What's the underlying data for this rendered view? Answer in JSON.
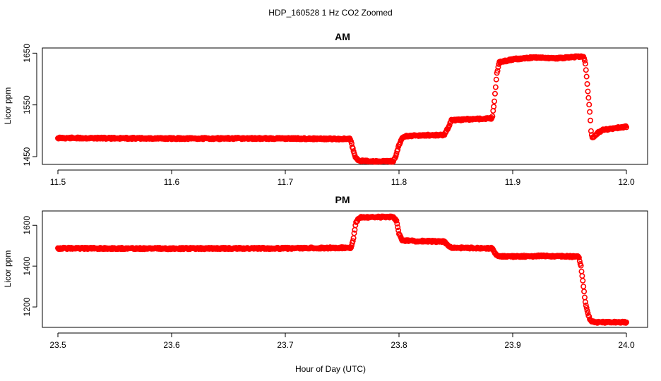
{
  "figure": {
    "title": "HDP_160528  1 Hz CO2 Zoomed",
    "xlabel": "Hour of Day (UTC)"
  },
  "chart_data": [
    {
      "type": "scatter",
      "title": "AM",
      "xlabel": "Hour of Day (UTC)",
      "ylabel": "Licor ppm",
      "xlim": [
        11.5,
        12.0
      ],
      "ylim": [
        1435,
        1660
      ],
      "xticks": [
        11.5,
        11.6,
        11.7,
        11.8,
        11.9,
        12.0
      ],
      "xtick_labels": [
        "11.5",
        "11.6",
        "11.7",
        "11.8",
        "11.9",
        "12.0"
      ],
      "yticks": [
        1450,
        1550,
        1650
      ],
      "ytick_labels": [
        "1450",
        "1550",
        "1650"
      ],
      "grid": false,
      "color": "#ff0000",
      "marker": "open-circle",
      "series": [
        {
          "x": [
            11.5,
            11.6,
            11.7,
            11.757,
            11.758,
            11.76,
            11.762,
            11.765,
            11.78,
            11.795,
            11.797,
            11.8,
            11.803,
            11.806,
            11.82,
            11.84,
            11.843,
            11.846,
            11.86,
            11.882,
            11.884,
            11.886,
            11.888,
            11.9,
            11.92,
            11.94,
            11.962,
            11.964,
            11.966,
            11.968,
            11.969,
            11.97,
            11.975,
            11.98,
            11.99,
            12.0
          ],
          "y": [
            1486,
            1485,
            1485,
            1484,
            1478,
            1460,
            1447,
            1442,
            1441,
            1441,
            1450,
            1473,
            1486,
            1490,
            1491,
            1492,
            1505,
            1520,
            1522,
            1524,
            1560,
            1610,
            1632,
            1638,
            1642,
            1640,
            1644,
            1630,
            1580,
            1530,
            1496,
            1486,
            1496,
            1502,
            1505,
            1508
          ]
        }
      ]
    },
    {
      "type": "scatter",
      "title": "PM",
      "xlabel": "Hour of Day (UTC)",
      "ylabel": "Licor ppm",
      "xlim": [
        23.5,
        24.0
      ],
      "ylim": [
        1100,
        1670
      ],
      "xticks": [
        23.5,
        23.6,
        23.7,
        23.8,
        23.9,
        24.0
      ],
      "xtick_labels": [
        "23.5",
        "23.6",
        "23.7",
        "23.8",
        "23.9",
        "24.0"
      ],
      "yticks": [
        1200,
        1400,
        1600
      ],
      "ytick_labels": [
        "1200",
        "1400",
        "1600"
      ],
      "grid": false,
      "color": "#ff0000",
      "marker": "open-circle",
      "series": [
        {
          "x": [
            23.5,
            23.6,
            23.7,
            23.758,
            23.76,
            23.762,
            23.765,
            23.78,
            23.795,
            23.798,
            23.8,
            23.803,
            23.82,
            23.84,
            23.843,
            23.846,
            23.86,
            23.882,
            23.884,
            23.887,
            23.9,
            23.93,
            23.958,
            23.96,
            23.962,
            23.964,
            23.966,
            23.968,
            23.97,
            23.975,
            23.98,
            24.0
          ],
          "y": [
            1487,
            1486,
            1487,
            1490,
            1540,
            1610,
            1638,
            1640,
            1640,
            1620,
            1560,
            1525,
            1522,
            1520,
            1500,
            1490,
            1489,
            1487,
            1465,
            1448,
            1447,
            1450,
            1446,
            1400,
            1310,
            1220,
            1170,
            1140,
            1128,
            1125,
            1125,
            1125
          ]
        }
      ]
    }
  ]
}
